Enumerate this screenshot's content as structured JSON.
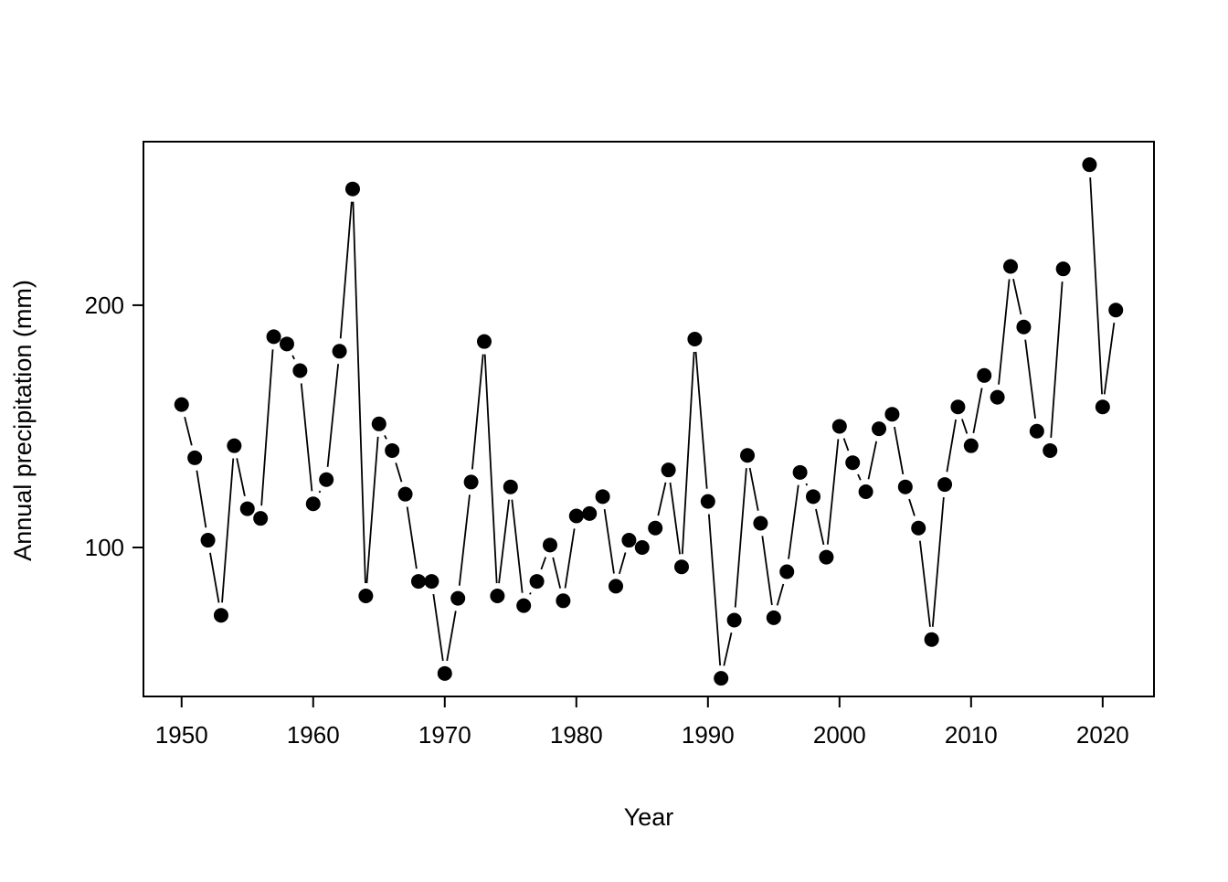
{
  "figure": {
    "background_color": "#ffffff",
    "foreground_color": "#000000"
  },
  "chart_data": {
    "type": "line",
    "style": "R base plot, type='b' (filled points joined by short line segments with gaps at markers)",
    "title": "",
    "xlabel": "Year",
    "ylabel": "Annual precipitation (mm)",
    "marker": "filled-circle",
    "marker_color": "#000000",
    "line_color": "#000000",
    "x_ticks": [
      1950,
      1960,
      1970,
      1980,
      1990,
      2000,
      2010,
      2020
    ],
    "x_tick_labels": [
      "1950",
      "1960",
      "1970",
      "1980",
      "1990",
      "2000",
      "2010",
      "2020"
    ],
    "y_ticks": [
      100,
      200
    ],
    "y_tick_labels": [
      "100",
      "200"
    ],
    "xlim": [
      1947.1,
      2023.9
    ],
    "ylim": [
      38.5,
      267.5
    ],
    "grid": false,
    "legend": false,
    "note": "value for 2018 is missing (no marker, line break)",
    "x": [
      1950,
      1951,
      1952,
      1953,
      1954,
      1955,
      1956,
      1957,
      1958,
      1959,
      1960,
      1961,
      1962,
      1963,
      1964,
      1965,
      1966,
      1967,
      1968,
      1969,
      1970,
      1971,
      1972,
      1973,
      1974,
      1975,
      1976,
      1977,
      1978,
      1979,
      1980,
      1981,
      1982,
      1983,
      1984,
      1985,
      1986,
      1987,
      1988,
      1989,
      1990,
      1991,
      1992,
      1993,
      1994,
      1995,
      1996,
      1997,
      1998,
      1999,
      2000,
      2001,
      2002,
      2003,
      2004,
      2005,
      2006,
      2007,
      2008,
      2009,
      2010,
      2011,
      2012,
      2013,
      2014,
      2015,
      2016,
      2017,
      2018,
      2019,
      2020,
      2021
    ],
    "values": [
      159,
      137,
      103,
      72,
      142,
      116,
      112,
      187,
      184,
      173,
      118,
      128,
      181,
      248,
      80,
      151,
      140,
      122,
      86,
      86,
      48,
      79,
      127,
      185,
      80,
      125,
      76,
      86,
      101,
      78,
      113,
      114,
      121,
      84,
      103,
      100,
      108,
      132,
      92,
      186,
      119,
      46,
      70,
      138,
      110,
      71,
      90,
      131,
      121,
      96,
      150,
      135,
      123,
      149,
      155,
      125,
      108,
      62,
      126,
      158,
      142,
      171,
      162,
      216,
      191,
      148,
      140,
      215,
      null,
      258,
      158,
      198
    ]
  }
}
